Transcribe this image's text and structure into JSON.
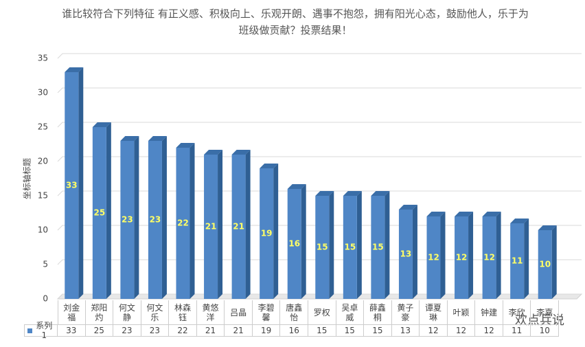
{
  "chart_data": {
    "type": "bar",
    "title": "谁比较符合下列特征  有正义感、积极向上、乐观开朗、遇事不抱怨，拥有阳光心态，鼓励他人，乐于为班级做贡献？投票结果！",
    "y_label": "坐标轴标题",
    "categories": [
      "刘金福",
      "郑阳灼",
      "何文静",
      "何文乐",
      "林森钰",
      "黄悠洋",
      "吕晶",
      "李碧馨",
      "唐鑫怡",
      "罗权",
      "吴卓威",
      "薛鑫桐",
      "黄子豪",
      "谭夏琳",
      "叶颖",
      "钟建",
      "李欣",
      "李嘉"
    ],
    "series": [
      {
        "name": "系列1",
        "color": "#4f86c6",
        "values": [
          33,
          25,
          23,
          23,
          22,
          21,
          21,
          19,
          16,
          15,
          15,
          15,
          13,
          12,
          12,
          12,
          11,
          10
        ]
      }
    ],
    "ylim": [
      0,
      35
    ],
    "yticks": [
      0,
      5,
      10,
      15,
      20,
      25,
      30,
      35
    ],
    "grid": true,
    "watermark": "欢点兵说"
  }
}
